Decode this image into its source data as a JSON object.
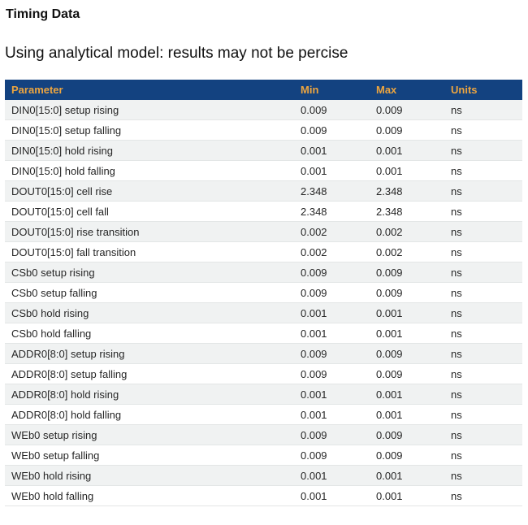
{
  "page": {
    "title": "Timing Data",
    "subtitle": "Using analytical model: results may not be percise"
  },
  "colors": {
    "header_background": "#134280",
    "header_text": "#EDA53F",
    "row_stripe": "#F0F2F2",
    "body_text": "#262626"
  },
  "table": {
    "columns": [
      "Parameter",
      "Min",
      "Max",
      "Units"
    ],
    "rows": [
      {
        "parameter": "DIN0[15:0] setup rising",
        "min": "0.009",
        "max": "0.009",
        "units": "ns"
      },
      {
        "parameter": "DIN0[15:0] setup falling",
        "min": "0.009",
        "max": "0.009",
        "units": "ns"
      },
      {
        "parameter": "DIN0[15:0] hold rising",
        "min": "0.001",
        "max": "0.001",
        "units": "ns"
      },
      {
        "parameter": "DIN0[15:0] hold falling",
        "min": "0.001",
        "max": "0.001",
        "units": "ns"
      },
      {
        "parameter": "DOUT0[15:0] cell rise",
        "min": "2.348",
        "max": "2.348",
        "units": "ns"
      },
      {
        "parameter": "DOUT0[15:0] cell fall",
        "min": "2.348",
        "max": "2.348",
        "units": "ns"
      },
      {
        "parameter": "DOUT0[15:0] rise transition",
        "min": "0.002",
        "max": "0.002",
        "units": "ns"
      },
      {
        "parameter": "DOUT0[15:0] fall transition",
        "min": "0.002",
        "max": "0.002",
        "units": "ns"
      },
      {
        "parameter": "CSb0 setup rising",
        "min": "0.009",
        "max": "0.009",
        "units": "ns"
      },
      {
        "parameter": "CSb0 setup falling",
        "min": "0.009",
        "max": "0.009",
        "units": "ns"
      },
      {
        "parameter": "CSb0 hold rising",
        "min": "0.001",
        "max": "0.001",
        "units": "ns"
      },
      {
        "parameter": "CSb0 hold falling",
        "min": "0.001",
        "max": "0.001",
        "units": "ns"
      },
      {
        "parameter": "ADDR0[8:0] setup rising",
        "min": "0.009",
        "max": "0.009",
        "units": "ns"
      },
      {
        "parameter": "ADDR0[8:0] setup falling",
        "min": "0.009",
        "max": "0.009",
        "units": "ns"
      },
      {
        "parameter": "ADDR0[8:0] hold rising",
        "min": "0.001",
        "max": "0.001",
        "units": "ns"
      },
      {
        "parameter": "ADDR0[8:0] hold falling",
        "min": "0.001",
        "max": "0.001",
        "units": "ns"
      },
      {
        "parameter": "WEb0 setup rising",
        "min": "0.009",
        "max": "0.009",
        "units": "ns"
      },
      {
        "parameter": "WEb0 setup falling",
        "min": "0.009",
        "max": "0.009",
        "units": "ns"
      },
      {
        "parameter": "WEb0 hold rising",
        "min": "0.001",
        "max": "0.001",
        "units": "ns"
      },
      {
        "parameter": "WEb0 hold falling",
        "min": "0.001",
        "max": "0.001",
        "units": "ns"
      }
    ]
  }
}
